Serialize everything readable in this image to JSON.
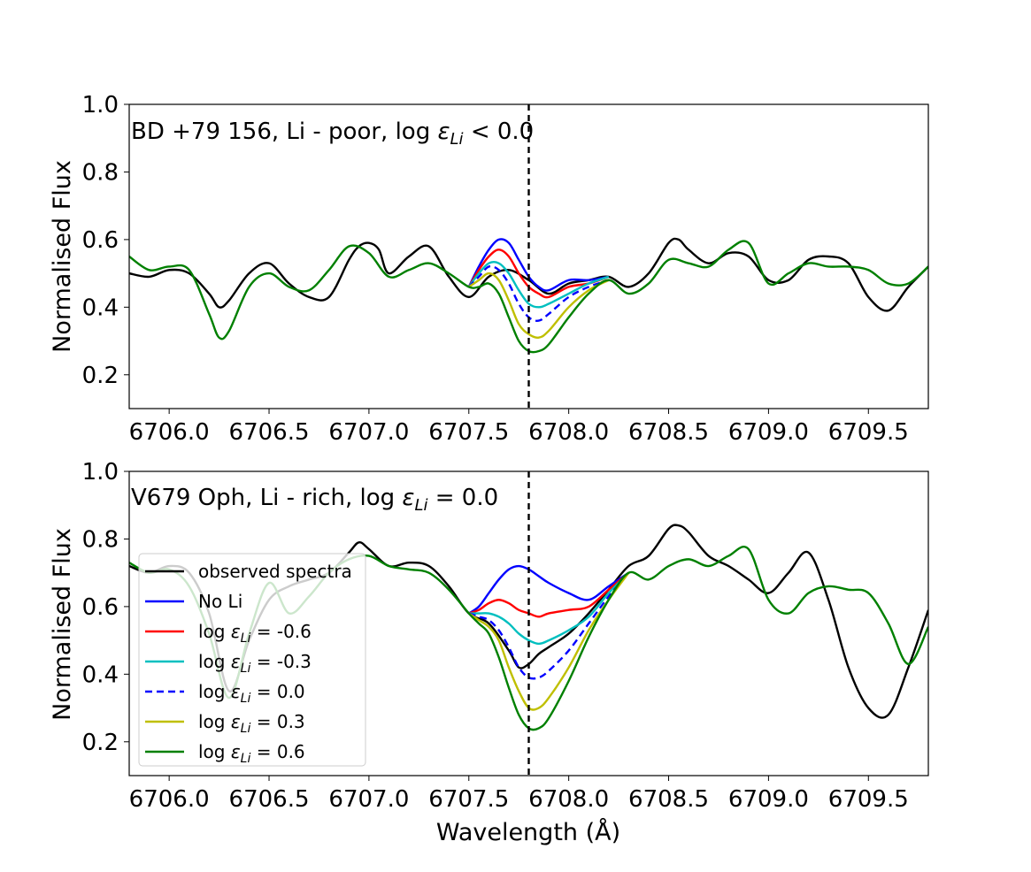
{
  "chart_data": [
    {
      "type": "line",
      "title": "",
      "annotation": {
        "prefix": "BD +79 156, Li - poor, log ",
        "eps": "ε",
        "sub": "Li",
        "suffix": " < 0.0",
        "color": "#ff0000"
      },
      "xlabel": "",
      "ylabel": "Normalised Flux",
      "xlim": [
        6705.8,
        6709.8
      ],
      "ylim": [
        0.1,
        1.0
      ],
      "xticks": [
        "6706.0",
        "6706.5",
        "6707.0",
        "6707.5",
        "6708.0",
        "6708.5",
        "6709.0",
        "6709.5"
      ],
      "xtick_values": [
        6706.0,
        6706.5,
        6707.0,
        6707.5,
        6708.0,
        6708.5,
        6709.0,
        6709.5
      ],
      "yticks": [
        "0.2",
        "0.4",
        "0.6",
        "0.8",
        "1.0"
      ],
      "ytick_values": [
        0.2,
        0.4,
        0.6,
        0.8,
        1.0
      ],
      "vline_x": 6707.8,
      "series": [
        {
          "name": "observed spectra",
          "color": "#000000",
          "dash": "solid",
          "x": [
            6705.8,
            6705.9,
            6706.0,
            6706.1,
            6706.2,
            6706.25,
            6706.3,
            6706.4,
            6706.5,
            6706.6,
            6706.7,
            6706.8,
            6706.9,
            6706.95,
            6707.0,
            6707.05,
            6707.1,
            6707.2,
            6707.3,
            6707.4,
            6707.5,
            6707.6,
            6707.7,
            6707.8,
            6707.9,
            6708.0,
            6708.1,
            6708.2,
            6708.3,
            6708.4,
            6708.5,
            6708.55,
            6708.6,
            6708.7,
            6708.8,
            6708.9,
            6709.0,
            6709.1,
            6709.2,
            6709.3,
            6709.4,
            6709.5,
            6709.6,
            6709.7,
            6709.8
          ],
          "y": [
            0.5,
            0.49,
            0.51,
            0.5,
            0.44,
            0.4,
            0.42,
            0.5,
            0.53,
            0.47,
            0.43,
            0.43,
            0.54,
            0.58,
            0.59,
            0.57,
            0.5,
            0.55,
            0.58,
            0.49,
            0.43,
            0.49,
            0.51,
            0.48,
            0.44,
            0.47,
            0.48,
            0.49,
            0.46,
            0.5,
            0.59,
            0.6,
            0.57,
            0.53,
            0.56,
            0.55,
            0.48,
            0.48,
            0.54,
            0.55,
            0.53,
            0.43,
            0.39,
            0.46,
            0.52
          ]
        },
        {
          "name": "No Li",
          "color": "#0000ff",
          "dash": "solid",
          "x": [
            6707.5,
            6707.55,
            6707.6,
            6707.65,
            6707.7,
            6707.75,
            6707.8,
            6707.85,
            6707.9,
            6708.0,
            6708.1,
            6708.2
          ],
          "y": [
            0.46,
            0.52,
            0.57,
            0.6,
            0.59,
            0.54,
            0.49,
            0.46,
            0.45,
            0.48,
            0.48,
            0.49
          ]
        },
        {
          "name": "log εLi = -0.6",
          "color": "#ff0000",
          "dash": "solid",
          "x": [
            6707.5,
            6707.55,
            6707.6,
            6707.65,
            6707.7,
            6707.75,
            6707.8,
            6707.85,
            6707.9,
            6708.0,
            6708.1,
            6708.2
          ],
          "y": [
            0.46,
            0.51,
            0.55,
            0.57,
            0.55,
            0.5,
            0.46,
            0.44,
            0.43,
            0.46,
            0.47,
            0.49
          ]
        },
        {
          "name": "log εLi = -0.3",
          "color": "#00bfbf",
          "dash": "solid",
          "x": [
            6707.5,
            6707.55,
            6707.6,
            6707.65,
            6707.7,
            6707.75,
            6707.8,
            6707.85,
            6707.9,
            6708.0,
            6708.1,
            6708.2
          ],
          "y": [
            0.46,
            0.5,
            0.53,
            0.53,
            0.5,
            0.45,
            0.41,
            0.4,
            0.41,
            0.44,
            0.47,
            0.49
          ]
        },
        {
          "name": "log εLi = 0.0",
          "color": "#0000ff",
          "dash": "dashed",
          "x": [
            6707.5,
            6707.55,
            6707.6,
            6707.65,
            6707.7,
            6707.75,
            6707.8,
            6707.85,
            6707.9,
            6708.0,
            6708.1,
            6708.2
          ],
          "y": [
            0.46,
            0.49,
            0.52,
            0.51,
            0.47,
            0.41,
            0.37,
            0.36,
            0.38,
            0.43,
            0.46,
            0.48
          ]
        },
        {
          "name": "log εLi = 0.3",
          "color": "#bfbf00",
          "dash": "solid",
          "x": [
            6707.5,
            6707.55,
            6707.6,
            6707.65,
            6707.7,
            6707.75,
            6707.8,
            6707.85,
            6707.9,
            6708.0,
            6708.1,
            6708.2
          ],
          "y": [
            0.46,
            0.48,
            0.5,
            0.48,
            0.42,
            0.35,
            0.32,
            0.31,
            0.33,
            0.4,
            0.45,
            0.48
          ]
        },
        {
          "name": "log εLi = 0.6",
          "color": "#008000",
          "dash": "solid",
          "x": [
            6705.8,
            6705.9,
            6706.0,
            6706.1,
            6706.2,
            6706.25,
            6706.3,
            6706.4,
            6706.5,
            6706.6,
            6706.7,
            6706.8,
            6706.9,
            6707.0,
            6707.1,
            6707.2,
            6707.3,
            6707.4,
            6707.5,
            6707.55,
            6707.6,
            6707.65,
            6707.7,
            6707.75,
            6707.8,
            6707.85,
            6707.9,
            6708.0,
            6708.1,
            6708.2,
            6708.3,
            6708.4,
            6708.5,
            6708.6,
            6708.7,
            6708.8,
            6708.9,
            6709.0,
            6709.1,
            6709.2,
            6709.3,
            6709.4,
            6709.5,
            6709.6,
            6709.7,
            6709.8
          ],
          "y": [
            0.55,
            0.51,
            0.52,
            0.51,
            0.38,
            0.31,
            0.33,
            0.46,
            0.5,
            0.46,
            0.45,
            0.51,
            0.58,
            0.56,
            0.49,
            0.51,
            0.53,
            0.5,
            0.46,
            0.46,
            0.47,
            0.44,
            0.37,
            0.3,
            0.27,
            0.27,
            0.29,
            0.37,
            0.44,
            0.48,
            0.44,
            0.47,
            0.54,
            0.53,
            0.52,
            0.57,
            0.59,
            0.47,
            0.5,
            0.53,
            0.52,
            0.52,
            0.51,
            0.47,
            0.47,
            0.52
          ]
        }
      ]
    },
    {
      "type": "line",
      "title": "",
      "annotation": {
        "prefix": "V679 Oph, Li - rich, log ",
        "eps": "ε",
        "sub": "Li",
        "suffix": " = 0.0",
        "color": "#ff0000"
      },
      "xlabel": "Wavelength (Å)",
      "ylabel": "Normalised Flux",
      "xlim": [
        6705.8,
        6709.8
      ],
      "ylim": [
        0.1,
        1.0
      ],
      "xticks": [
        "6706.0",
        "6706.5",
        "6707.0",
        "6707.5",
        "6708.0",
        "6708.5",
        "6709.0",
        "6709.5"
      ],
      "xtick_values": [
        6706.0,
        6706.5,
        6707.0,
        6707.5,
        6708.0,
        6708.5,
        6709.0,
        6709.5
      ],
      "yticks": [
        "0.2",
        "0.4",
        "0.6",
        "0.8",
        "1.0"
      ],
      "ytick_values": [
        0.2,
        0.4,
        0.6,
        0.8,
        1.0
      ],
      "vline_x": 6707.8,
      "legend_position": "lower-left",
      "series": [
        {
          "name": "observed spectra",
          "color": "#000000",
          "dash": "solid",
          "x": [
            6705.8,
            6705.9,
            6706.0,
            6706.1,
            6706.2,
            6706.3,
            6706.4,
            6706.5,
            6706.6,
            6706.7,
            6706.8,
            6706.9,
            6706.95,
            6707.0,
            6707.1,
            6707.2,
            6707.3,
            6707.4,
            6707.5,
            6707.6,
            6707.7,
            6707.75,
            6707.8,
            6707.85,
            6707.9,
            6708.0,
            6708.1,
            6708.2,
            6708.3,
            6708.4,
            6708.5,
            6708.55,
            6708.6,
            6708.7,
            6708.8,
            6708.9,
            6709.0,
            6709.1,
            6709.2,
            6709.3,
            6709.4,
            6709.5,
            6709.6,
            6709.7,
            6709.8
          ],
          "y": [
            0.72,
            0.7,
            0.72,
            0.7,
            0.58,
            0.35,
            0.5,
            0.62,
            0.66,
            0.68,
            0.7,
            0.76,
            0.79,
            0.77,
            0.72,
            0.73,
            0.72,
            0.66,
            0.58,
            0.55,
            0.47,
            0.42,
            0.43,
            0.46,
            0.48,
            0.52,
            0.58,
            0.65,
            0.72,
            0.75,
            0.83,
            0.84,
            0.82,
            0.75,
            0.72,
            0.68,
            0.64,
            0.7,
            0.76,
            0.62,
            0.42,
            0.3,
            0.28,
            0.42,
            0.59
          ]
        },
        {
          "name": "No Li",
          "color": "#0000ff",
          "dash": "solid",
          "x": [
            6707.5,
            6707.55,
            6707.6,
            6707.65,
            6707.7,
            6707.75,
            6707.8,
            6707.85,
            6707.9,
            6708.0,
            6708.1,
            6708.2,
            6708.3
          ],
          "y": [
            0.58,
            0.6,
            0.64,
            0.68,
            0.71,
            0.72,
            0.71,
            0.69,
            0.67,
            0.64,
            0.62,
            0.66,
            0.7
          ]
        },
        {
          "name": "log εLi = -0.6",
          "color": "#ff0000",
          "dash": "solid",
          "x": [
            6707.5,
            6707.55,
            6707.6,
            6707.65,
            6707.7,
            6707.75,
            6707.8,
            6707.85,
            6707.9,
            6708.0,
            6708.1,
            6708.2,
            6708.3
          ],
          "y": [
            0.58,
            0.59,
            0.61,
            0.62,
            0.61,
            0.59,
            0.58,
            0.57,
            0.58,
            0.59,
            0.6,
            0.65,
            0.7
          ]
        },
        {
          "name": "log εLi = -0.3",
          "color": "#00bfbf",
          "dash": "solid",
          "x": [
            6707.5,
            6707.55,
            6707.6,
            6707.65,
            6707.7,
            6707.75,
            6707.8,
            6707.85,
            6707.9,
            6708.0,
            6708.1,
            6708.2,
            6708.3
          ],
          "y": [
            0.58,
            0.58,
            0.58,
            0.57,
            0.55,
            0.52,
            0.5,
            0.49,
            0.5,
            0.53,
            0.57,
            0.64,
            0.7
          ]
        },
        {
          "name": "log εLi = 0.0",
          "color": "#0000ff",
          "dash": "dashed",
          "x": [
            6707.5,
            6707.55,
            6707.6,
            6707.65,
            6707.7,
            6707.75,
            6707.8,
            6707.85,
            6707.9,
            6708.0,
            6708.1,
            6708.2,
            6708.3
          ],
          "y": [
            0.58,
            0.57,
            0.56,
            0.53,
            0.48,
            0.42,
            0.39,
            0.39,
            0.41,
            0.47,
            0.55,
            0.63,
            0.7
          ]
        },
        {
          "name": "log εLi = 0.3",
          "color": "#bfbf00",
          "dash": "solid",
          "x": [
            6707.5,
            6707.55,
            6707.6,
            6707.65,
            6707.7,
            6707.75,
            6707.8,
            6707.85,
            6707.9,
            6708.0,
            6708.1,
            6708.2,
            6708.3
          ],
          "y": [
            0.58,
            0.56,
            0.54,
            0.5,
            0.42,
            0.35,
            0.3,
            0.3,
            0.33,
            0.42,
            0.53,
            0.62,
            0.7
          ]
        },
        {
          "name": "log εLi = 0.6",
          "color": "#008000",
          "dash": "solid",
          "x": [
            6705.8,
            6705.9,
            6706.0,
            6706.1,
            6706.2,
            6706.3,
            6706.4,
            6706.5,
            6706.6,
            6706.7,
            6706.8,
            6706.9,
            6707.0,
            6707.1,
            6707.2,
            6707.3,
            6707.4,
            6707.5,
            6707.55,
            6707.6,
            6707.65,
            6707.7,
            6707.75,
            6707.8,
            6707.85,
            6707.9,
            6708.0,
            6708.1,
            6708.2,
            6708.3,
            6708.4,
            6708.5,
            6708.6,
            6708.7,
            6708.8,
            6708.9,
            6709.0,
            6709.1,
            6709.2,
            6709.3,
            6709.4,
            6709.5,
            6709.6,
            6709.7,
            6709.8
          ],
          "y": [
            0.73,
            0.7,
            0.71,
            0.66,
            0.52,
            0.33,
            0.52,
            0.67,
            0.58,
            0.63,
            0.7,
            0.74,
            0.75,
            0.72,
            0.71,
            0.7,
            0.65,
            0.58,
            0.55,
            0.52,
            0.45,
            0.36,
            0.28,
            0.24,
            0.24,
            0.27,
            0.38,
            0.51,
            0.62,
            0.7,
            0.68,
            0.72,
            0.74,
            0.72,
            0.75,
            0.77,
            0.62,
            0.58,
            0.64,
            0.66,
            0.65,
            0.64,
            0.55,
            0.43,
            0.54
          ]
        }
      ]
    }
  ]
}
